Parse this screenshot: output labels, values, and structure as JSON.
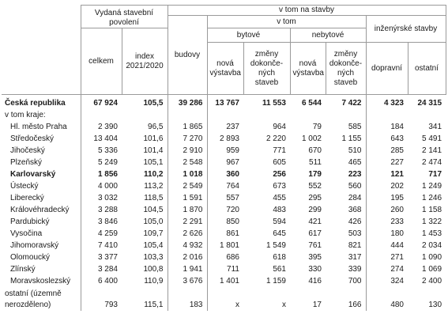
{
  "header": {
    "vydana": "Vydaná stavební povolení",
    "v_tom_na_stavby": "v tom na stavby",
    "budovy": "budovy",
    "v_tom": "v tom",
    "inzenyrske": "inženýrské stavby",
    "bytove": "bytové",
    "nebytove": "nebytové",
    "celkem": "celkem",
    "index": "index 2021/2020",
    "nova_vystavba_1": "nová výstavba",
    "zmeny_1": "změny dokonče-ných staveb",
    "nova_vystavba_2": "nová výstavba",
    "zmeny_2": "změny dokonče-ných staveb",
    "dopravni": "dopravní",
    "ostatni": "ostatní"
  },
  "rows": [
    {
      "name": "Česká republika",
      "celkem": "67 924",
      "index": "105,5",
      "budovy": "39 286",
      "byt_nova": "13 767",
      "byt_zmeny": "11 553",
      "neb_nova": "6 544",
      "neb_zmeny": "7 422",
      "dopravni": "4 323",
      "ostatni": "24 315"
    },
    {
      "name": "v tom kraje:",
      "celkem": "",
      "index": "",
      "budovy": "",
      "byt_nova": "",
      "byt_zmeny": "",
      "neb_nova": "",
      "neb_zmeny": "",
      "dopravni": "",
      "ostatni": ""
    },
    {
      "name": "Hl. město Praha",
      "celkem": "2 390",
      "index": "96,5",
      "budovy": "1 865",
      "byt_nova": "237",
      "byt_zmeny": "964",
      "neb_nova": "79",
      "neb_zmeny": "585",
      "dopravni": "184",
      "ostatni": "341"
    },
    {
      "name": "Středočeský",
      "celkem": "13 404",
      "index": "101,6",
      "budovy": "7 270",
      "byt_nova": "2 893",
      "byt_zmeny": "2 220",
      "neb_nova": "1 002",
      "neb_zmeny": "1 155",
      "dopravni": "643",
      "ostatni": "5 491"
    },
    {
      "name": "Jihočeský",
      "celkem": "5 336",
      "index": "101,4",
      "budovy": "2 910",
      "byt_nova": "959",
      "byt_zmeny": "771",
      "neb_nova": "670",
      "neb_zmeny": "510",
      "dopravni": "285",
      "ostatni": "2 141"
    },
    {
      "name": "Plzeňský",
      "celkem": "5 249",
      "index": "105,1",
      "budovy": "2 548",
      "byt_nova": "967",
      "byt_zmeny": "605",
      "neb_nova": "511",
      "neb_zmeny": "465",
      "dopravni": "227",
      "ostatni": "2 474"
    },
    {
      "name": "Karlovarský",
      "celkem": "1 856",
      "index": "110,2",
      "budovy": "1 018",
      "byt_nova": "360",
      "byt_zmeny": "256",
      "neb_nova": "179",
      "neb_zmeny": "223",
      "dopravni": "121",
      "ostatni": "717"
    },
    {
      "name": "Ústecký",
      "celkem": "4 000",
      "index": "113,2",
      "budovy": "2 549",
      "byt_nova": "764",
      "byt_zmeny": "673",
      "neb_nova": "552",
      "neb_zmeny": "560",
      "dopravni": "202",
      "ostatni": "1 249"
    },
    {
      "name": "Liberecký",
      "celkem": "3 032",
      "index": "118,5",
      "budovy": "1 591",
      "byt_nova": "557",
      "byt_zmeny": "455",
      "neb_nova": "295",
      "neb_zmeny": "284",
      "dopravni": "195",
      "ostatni": "1 246"
    },
    {
      "name": "Královéhradecký",
      "celkem": "3 288",
      "index": "104,5",
      "budovy": "1 870",
      "byt_nova": "720",
      "byt_zmeny": "483",
      "neb_nova": "299",
      "neb_zmeny": "368",
      "dopravni": "260",
      "ostatni": "1 158"
    },
    {
      "name": "Pardubický",
      "celkem": "3 846",
      "index": "105,0",
      "budovy": "2 291",
      "byt_nova": "850",
      "byt_zmeny": "594",
      "neb_nova": "421",
      "neb_zmeny": "426",
      "dopravni": "233",
      "ostatni": "1 322"
    },
    {
      "name": "Vysočina",
      "celkem": "4 259",
      "index": "109,7",
      "budovy": "2 626",
      "byt_nova": "861",
      "byt_zmeny": "645",
      "neb_nova": "617",
      "neb_zmeny": "503",
      "dopravni": "180",
      "ostatni": "1 453"
    },
    {
      "name": "Jihomoravský",
      "celkem": "7 410",
      "index": "105,4",
      "budovy": "4 932",
      "byt_nova": "1 801",
      "byt_zmeny": "1 549",
      "neb_nova": "761",
      "neb_zmeny": "821",
      "dopravni": "444",
      "ostatni": "2 034"
    },
    {
      "name": "Olomoucký",
      "celkem": "3 377",
      "index": "103,3",
      "budovy": "2 016",
      "byt_nova": "686",
      "byt_zmeny": "618",
      "neb_nova": "395",
      "neb_zmeny": "317",
      "dopravni": "271",
      "ostatni": "1 090"
    },
    {
      "name": "Zlínský",
      "celkem": "3 284",
      "index": "100,8",
      "budovy": "1 941",
      "byt_nova": "711",
      "byt_zmeny": "561",
      "neb_nova": "330",
      "neb_zmeny": "339",
      "dopravni": "274",
      "ostatni": "1 069"
    },
    {
      "name": "Moravskoslezský",
      "celkem": "6 400",
      "index": "110,9",
      "budovy": "3 676",
      "byt_nova": "1 401",
      "byt_zmeny": "1 159",
      "neb_nova": "416",
      "neb_zmeny": "700",
      "dopravni": "324",
      "ostatni": "2 400"
    },
    {
      "name": "ostatní (územně nerozděleno)",
      "celkem": "793",
      "index": "115,1",
      "budovy": "183",
      "byt_nova": "x",
      "byt_zmeny": "x",
      "neb_nova": "17",
      "neb_zmeny": "166",
      "dopravni": "480",
      "ostatni": "130"
    }
  ]
}
